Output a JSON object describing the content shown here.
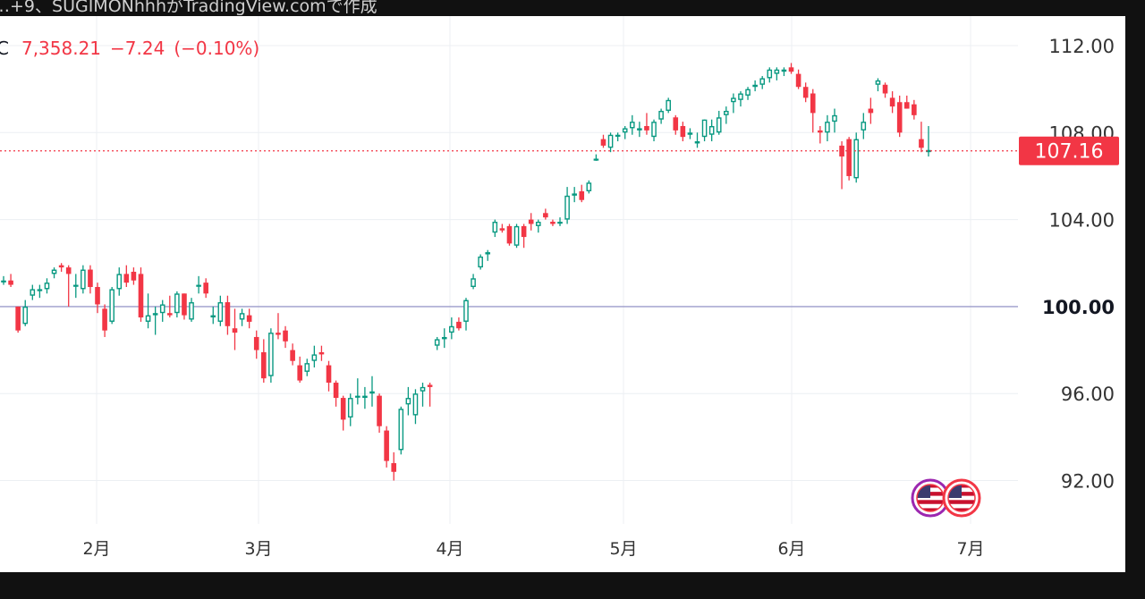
{
  "header_text": "…+9、SUGIMONhhhがTradingView.comで作成",
  "legend": {
    "symbol": "C",
    "price": "7,358.21",
    "change": "−7.24",
    "change_pct": "(−0.10%)"
  },
  "colors": {
    "up": "#089981",
    "down": "#f23645",
    "grid": "#eceff3",
    "ref_line": "#9c9ccb"
  },
  "icons": [
    "us-flag-icon",
    "us-flag-icon"
  ],
  "chart_data": {
    "type": "candlestick",
    "y_axis": {
      "side": "right",
      "ylim": [
        90.0,
        113.0
      ],
      "ticks": [
        "112.00",
        "108.00",
        "104.00",
        "100.00",
        "96.00",
        "92.00"
      ],
      "bold_tick": "100.00"
    },
    "x_axis": {
      "ticks": [
        "2月",
        "3月",
        "4月",
        "5月",
        "6月",
        "7月"
      ]
    },
    "reference_line": 100.0,
    "last_price": {
      "value": 107.16,
      "label": "107.16"
    },
    "grid": true,
    "ohlc": [
      [
        101.2,
        101.4,
        101.0,
        101.2
      ],
      [
        101.2,
        101.5,
        100.9,
        101.0
      ],
      [
        100.0,
        100.0,
        98.8,
        98.9
      ],
      [
        99.2,
        100.3,
        99.1,
        100.0
      ],
      [
        100.5,
        101.0,
        100.3,
        100.8
      ],
      [
        100.8,
        101.0,
        100.4,
        100.8
      ],
      [
        100.8,
        101.3,
        100.6,
        101.1
      ],
      [
        101.5,
        101.8,
        101.3,
        101.7
      ],
      [
        101.9,
        102.0,
        101.6,
        101.8
      ],
      [
        101.8,
        101.9,
        100.0,
        101.5
      ],
      [
        101.0,
        101.5,
        100.4,
        101.0
      ],
      [
        100.8,
        101.9,
        100.6,
        101.7
      ],
      [
        101.7,
        101.9,
        100.6,
        100.9
      ],
      [
        100.9,
        101.1,
        99.7,
        100.1
      ],
      [
        99.9,
        100.1,
        98.6,
        98.9
      ],
      [
        99.3,
        100.9,
        99.2,
        100.8
      ],
      [
        100.8,
        101.8,
        100.5,
        101.5
      ],
      [
        101.5,
        101.9,
        100.9,
        101.1
      ],
      [
        101.6,
        101.8,
        101.0,
        101.2
      ],
      [
        101.5,
        101.8,
        99.3,
        99.5
      ],
      [
        99.3,
        100.6,
        99.0,
        99.6
      ],
      [
        99.6,
        100.0,
        98.7,
        99.7
      ],
      [
        99.7,
        100.3,
        99.3,
        100.1
      ],
      [
        99.7,
        100.5,
        99.5,
        99.6
      ],
      [
        99.7,
        100.7,
        99.5,
        100.6
      ],
      [
        100.6,
        100.6,
        99.4,
        99.6
      ],
      [
        99.4,
        100.4,
        99.3,
        100.2
      ],
      [
        101.0,
        101.4,
        100.6,
        101.0
      ],
      [
        101.1,
        101.3,
        100.4,
        100.6
      ],
      [
        99.5,
        100.0,
        99.2,
        99.6
      ],
      [
        99.3,
        100.5,
        99.1,
        100.2
      ],
      [
        100.2,
        100.5,
        98.7,
        99.1
      ],
      [
        99.0,
        99.9,
        98.0,
        98.8
      ],
      [
        99.4,
        99.9,
        99.1,
        99.7
      ],
      [
        99.6,
        99.9,
        99.0,
        99.3
      ],
      [
        98.6,
        98.9,
        97.6,
        98.0
      ],
      [
        97.9,
        98.5,
        96.5,
        96.7
      ],
      [
        96.8,
        99.0,
        96.5,
        98.8
      ],
      [
        98.8,
        99.7,
        98.5,
        98.7
      ],
      [
        98.9,
        99.1,
        98.1,
        98.4
      ],
      [
        98.0,
        98.3,
        97.3,
        97.5
      ],
      [
        97.3,
        97.7,
        96.5,
        96.6
      ],
      [
        97.0,
        97.6,
        96.8,
        97.4
      ],
      [
        97.5,
        98.2,
        97.2,
        97.8
      ],
      [
        97.9,
        98.2,
        97.5,
        97.8
      ],
      [
        97.3,
        97.5,
        96.1,
        96.5
      ],
      [
        96.5,
        96.6,
        95.4,
        95.8
      ],
      [
        95.8,
        95.9,
        94.3,
        94.8
      ],
      [
        94.9,
        96.0,
        94.5,
        95.8
      ],
      [
        95.9,
        96.7,
        95.5,
        95.9
      ],
      [
        95.8,
        96.3,
        95.3,
        95.9
      ],
      [
        96.0,
        96.8,
        95.4,
        96.1
      ],
      [
        95.9,
        96.0,
        94.2,
        94.5
      ],
      [
        94.3,
        94.5,
        92.6,
        92.9
      ],
      [
        92.8,
        93.3,
        92.0,
        92.4
      ],
      [
        93.4,
        95.4,
        93.2,
        95.3
      ],
      [
        95.5,
        96.3,
        95.0,
        95.8
      ],
      [
        95.0,
        96.2,
        94.6,
        96.0
      ],
      [
        96.1,
        96.5,
        95.4,
        96.3
      ],
      [
        96.4,
        96.5,
        95.4,
        96.3
      ],
      [
        98.2,
        98.6,
        98.0,
        98.5
      ],
      [
        98.5,
        99.0,
        98.1,
        98.6
      ],
      [
        98.8,
        99.5,
        98.5,
        99.1
      ],
      [
        99.3,
        99.5,
        98.9,
        99.0
      ],
      [
        99.3,
        100.4,
        98.9,
        100.3
      ],
      [
        100.9,
        101.5,
        100.8,
        101.3
      ],
      [
        101.8,
        102.4,
        101.7,
        102.3
      ],
      [
        102.4,
        102.6,
        102.1,
        102.5
      ],
      [
        103.4,
        104.0,
        103.2,
        103.9
      ],
      [
        103.6,
        103.8,
        103.4,
        103.5
      ],
      [
        103.7,
        103.8,
        102.8,
        102.9
      ],
      [
        102.8,
        103.8,
        102.7,
        103.7
      ],
      [
        103.7,
        103.8,
        102.7,
        103.2
      ],
      [
        104.0,
        104.3,
        103.5,
        103.8
      ],
      [
        103.7,
        104.0,
        103.4,
        103.9
      ],
      [
        104.3,
        104.5,
        104.0,
        104.1
      ],
      [
        103.9,
        104.0,
        103.7,
        103.8
      ],
      [
        103.9,
        104.1,
        103.7,
        103.9
      ],
      [
        104.0,
        105.5,
        103.8,
        105.1
      ],
      [
        105.1,
        105.5,
        104.8,
        105.2
      ],
      [
        105.3,
        105.6,
        104.8,
        104.9
      ],
      [
        105.3,
        105.8,
        105.2,
        105.7
      ],
      [
        106.8,
        107.0,
        106.7,
        106.8
      ],
      [
        107.7,
        107.9,
        107.3,
        107.4
      ],
      [
        107.3,
        108.0,
        107.1,
        107.9
      ],
      [
        107.9,
        108.0,
        107.6,
        107.9
      ],
      [
        108.0,
        108.3,
        107.7,
        108.2
      ],
      [
        108.2,
        108.8,
        107.9,
        108.5
      ],
      [
        108.1,
        108.5,
        107.8,
        108.2
      ],
      [
        108.3,
        108.9,
        107.9,
        108.1
      ],
      [
        107.8,
        108.6,
        107.6,
        108.5
      ],
      [
        108.6,
        109.1,
        108.4,
        109.0
      ],
      [
        109.0,
        109.6,
        108.9,
        109.5
      ],
      [
        108.7,
        108.8,
        107.9,
        108.1
      ],
      [
        108.3,
        108.5,
        107.6,
        107.8
      ],
      [
        107.9,
        108.2,
        107.7,
        108.0
      ],
      [
        107.5,
        108.0,
        107.3,
        107.6
      ],
      [
        107.8,
        108.6,
        107.6,
        108.6
      ],
      [
        107.9,
        108.6,
        107.6,
        108.3
      ],
      [
        108.0,
        109.0,
        107.9,
        108.7
      ],
      [
        108.8,
        109.2,
        108.4,
        109.0
      ],
      [
        109.4,
        109.8,
        108.9,
        109.6
      ],
      [
        109.5,
        109.9,
        109.2,
        109.8
      ],
      [
        109.7,
        110.1,
        109.5,
        110.0
      ],
      [
        110.1,
        110.4,
        109.9,
        110.2
      ],
      [
        110.2,
        110.6,
        110.0,
        110.5
      ],
      [
        110.5,
        111.0,
        110.3,
        110.9
      ],
      [
        110.7,
        111.0,
        110.4,
        110.9
      ],
      [
        110.8,
        111.0,
        110.6,
        110.9
      ],
      [
        111.0,
        111.2,
        110.7,
        110.8
      ],
      [
        110.7,
        110.9,
        110.0,
        110.1
      ],
      [
        110.1,
        110.3,
        109.4,
        109.6
      ],
      [
        109.8,
        110.0,
        108.0,
        108.9
      ],
      [
        108.1,
        108.3,
        107.5,
        108.0
      ],
      [
        108.0,
        108.8,
        107.6,
        108.5
      ],
      [
        108.5,
        109.1,
        108.0,
        108.8
      ],
      [
        107.4,
        107.6,
        105.4,
        106.9
      ],
      [
        107.7,
        107.8,
        105.8,
        106.0
      ],
      [
        105.9,
        108.0,
        105.7,
        107.7
      ],
      [
        108.1,
        108.9,
        107.7,
        108.5
      ],
      [
        109.1,
        109.6,
        108.4,
        108.9
      ],
      [
        110.2,
        110.5,
        109.9,
        110.4
      ],
      [
        110.2,
        110.3,
        109.6,
        109.8
      ],
      [
        109.6,
        109.9,
        108.9,
        109.2
      ],
      [
        109.4,
        109.7,
        107.8,
        108.0
      ],
      [
        109.4,
        109.7,
        109.1,
        109.1
      ],
      [
        109.3,
        109.5,
        108.6,
        108.8
      ],
      [
        107.7,
        108.5,
        107.1,
        107.3
      ],
      [
        107.1,
        108.3,
        106.9,
        107.2
      ]
    ]
  }
}
